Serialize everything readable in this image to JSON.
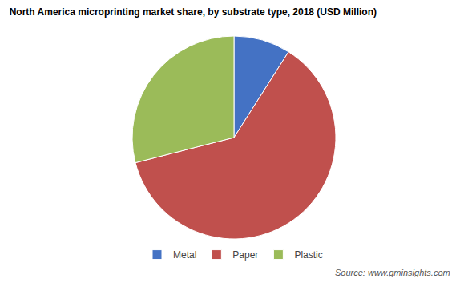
{
  "chart_data": {
    "type": "pie",
    "title": "North America microprinting market share, by substrate type, 2018 (USD Million)",
    "categories": [
      "Metal",
      "Paper",
      "Plastic"
    ],
    "values": [
      9,
      62,
      29
    ],
    "colors": [
      "#4472c4",
      "#c0504d",
      "#9bbb59"
    ],
    "legend": "bottom",
    "annotations": [
      "Source: www.gminsights.com"
    ]
  }
}
